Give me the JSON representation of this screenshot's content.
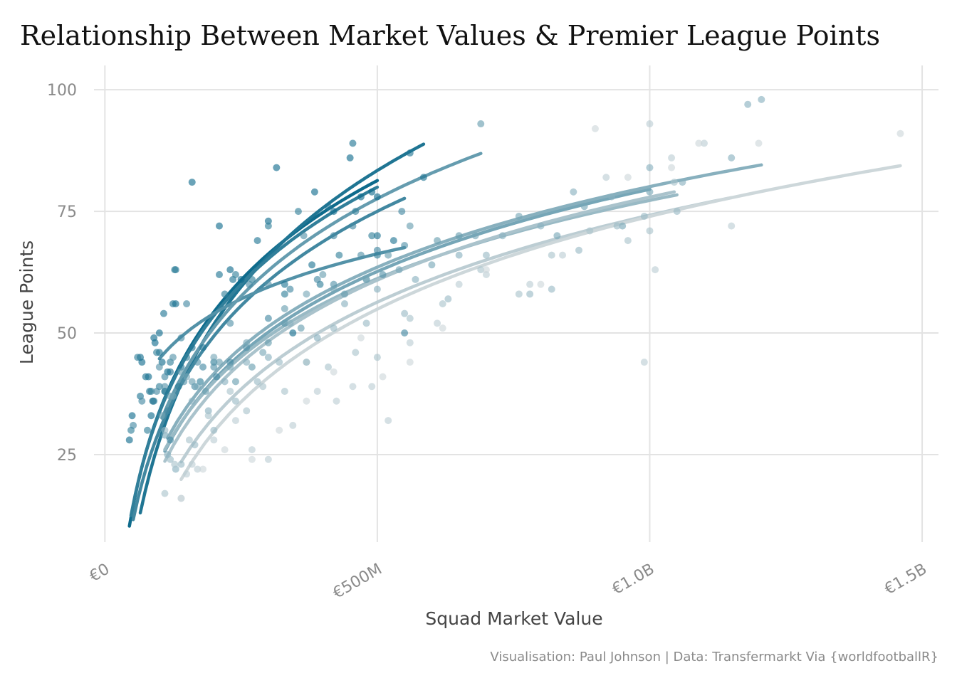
{
  "title": "Relationship Between Market Values & Premier League Points",
  "caption": "Visualisation: Paul Johnson  |  Data: Transfermarkt Via {worldfootballR}",
  "colors": {
    "dark": "#0e6b8c",
    "light": "#cdd7da",
    "grid": "#e3e3e3",
    "text": "#8a8a8a"
  },
  "chart_data": {
    "type": "scatter",
    "xlabel": "Squad Market Value",
    "ylabel": "League Points",
    "xlim": [
      -20,
      1530
    ],
    "ylim": [
      7,
      105
    ],
    "x_ticks": [
      0,
      500,
      1000,
      1500
    ],
    "x_tick_labels": [
      "€0",
      "€500M",
      "€1.0B",
      "€1.5B"
    ],
    "y_ticks": [
      25,
      50,
      75,
      100
    ],
    "y_tick_labels": [
      "25",
      "50",
      "75",
      "100"
    ],
    "x_units": "€M",
    "seasons": [
      {
        "x_range": [
          45,
          500
        ],
        "a": -102.0,
        "b": 29.5,
        "points": [
          [
            45,
            28
          ],
          [
            50,
            33
          ],
          [
            65,
            45
          ],
          [
            68,
            44
          ],
          [
            80,
            41
          ],
          [
            85,
            33
          ],
          [
            88,
            36
          ],
          [
            90,
            49
          ],
          [
            92,
            48
          ],
          [
            100,
            50
          ],
          [
            105,
            44
          ],
          [
            110,
            38
          ],
          [
            115,
            42
          ],
          [
            130,
            56
          ],
          [
            160,
            81
          ],
          [
            210,
            72
          ],
          [
            230,
            63
          ],
          [
            250,
            61
          ],
          [
            300,
            73
          ],
          [
            315,
            84
          ],
          [
            345,
            50
          ],
          [
            385,
            79
          ],
          [
            420,
            75
          ],
          [
            450,
            86
          ],
          [
            470,
            78
          ],
          [
            490,
            79
          ],
          [
            500,
            78
          ]
        ]
      },
      {
        "x_range": [
          65,
          585
        ],
        "a": -131.0,
        "b": 34.5,
        "points": [
          [
            65,
            37
          ],
          [
            75,
            41
          ],
          [
            82,
            38
          ],
          [
            90,
            36
          ],
          [
            100,
            46
          ],
          [
            108,
            54
          ],
          [
            120,
            42
          ],
          [
            125,
            56
          ],
          [
            130,
            63
          ],
          [
            140,
            43
          ],
          [
            160,
            47
          ],
          [
            180,
            47
          ],
          [
            210,
            62
          ],
          [
            235,
            61
          ],
          [
            280,
            69
          ],
          [
            330,
            60
          ],
          [
            380,
            64
          ],
          [
            410,
            76
          ],
          [
            455,
            89
          ],
          [
            500,
            70
          ],
          [
            530,
            69
          ],
          [
            560,
            87
          ],
          [
            585,
            82
          ]
        ]
      },
      {
        "x_range": [
          48,
          500
        ],
        "a": -99.0,
        "b": 28.8,
        "points": [
          [
            48,
            30
          ],
          [
            60,
            45
          ],
          [
            78,
            30
          ],
          [
            85,
            38
          ],
          [
            95,
            46
          ],
          [
            100,
            39
          ],
          [
            110,
            38
          ],
          [
            120,
            44
          ],
          [
            128,
            63
          ],
          [
            135,
            39
          ],
          [
            150,
            45
          ],
          [
            175,
            40
          ],
          [
            200,
            44
          ],
          [
            220,
            58
          ],
          [
            240,
            62
          ],
          [
            270,
            61
          ],
          [
            300,
            72
          ],
          [
            330,
            58
          ],
          [
            355,
            75
          ],
          [
            395,
            60
          ],
          [
            430,
            66
          ],
          [
            460,
            75
          ],
          [
            490,
            70
          ],
          [
            500,
            66
          ]
        ]
      },
      {
        "x_range": [
          52,
          550
        ],
        "a": -99.0,
        "b": 28.0,
        "points": [
          [
            52,
            31
          ],
          [
            68,
            36
          ],
          [
            88,
            36
          ],
          [
            95,
            38
          ],
          [
            110,
            41
          ],
          [
            115,
            34
          ],
          [
            120,
            28
          ],
          [
            140,
            49
          ],
          [
            150,
            56
          ],
          [
            165,
            39
          ],
          [
            180,
            43
          ],
          [
            205,
            41
          ],
          [
            230,
            44
          ],
          [
            265,
            60
          ],
          [
            300,
            53
          ],
          [
            340,
            59
          ],
          [
            390,
            61
          ],
          [
            420,
            70
          ],
          [
            455,
            72
          ],
          [
            500,
            67
          ],
          [
            545,
            75
          ],
          [
            550,
            50
          ]
        ]
      },
      {
        "x_range": [
          100,
          550
        ],
        "a": -17.0,
        "b": 13.4,
        "points": [
          [
            100,
            43
          ],
          [
            110,
            39
          ],
          [
            125,
            45
          ],
          [
            145,
            40
          ],
          [
            170,
            44
          ],
          [
            200,
            43
          ],
          [
            230,
            52
          ],
          [
            260,
            47
          ],
          [
            300,
            60
          ],
          [
            330,
            52
          ],
          [
            365,
            70
          ],
          [
            420,
            60
          ],
          [
            470,
            66
          ],
          [
            510,
            62
          ],
          [
            550,
            68
          ]
        ]
      },
      {
        "x_range": [
          105,
          690
        ],
        "a": -102.0,
        "b": 28.9,
        "points": [
          [
            105,
            33
          ],
          [
            120,
            37
          ],
          [
            140,
            42
          ],
          [
            160,
            40
          ],
          [
            185,
            38
          ],
          [
            210,
            44
          ],
          [
            240,
            40
          ],
          [
            270,
            43
          ],
          [
            300,
            48
          ],
          [
            330,
            55
          ],
          [
            360,
            51
          ],
          [
            400,
            62
          ],
          [
            440,
            58
          ],
          [
            480,
            61
          ],
          [
            520,
            66
          ],
          [
            560,
            72
          ],
          [
            610,
            69
          ],
          [
            650,
            70
          ],
          [
            690,
            93
          ]
        ]
      },
      {
        "x_range": [
          110,
          1000
        ],
        "a": -89.0,
        "b": 24.4,
        "points": [
          [
            110,
            29
          ],
          [
            125,
            37
          ],
          [
            150,
            41
          ],
          [
            170,
            39
          ],
          [
            200,
            45
          ],
          [
            230,
            43
          ],
          [
            260,
            48
          ],
          [
            290,
            46
          ],
          [
            330,
            52
          ],
          [
            370,
            58
          ],
          [
            420,
            59
          ],
          [
            480,
            61
          ],
          [
            540,
            63
          ],
          [
            600,
            64
          ],
          [
            680,
            70
          ],
          [
            760,
            74
          ],
          [
            830,
            70
          ],
          [
            880,
            76
          ],
          [
            950,
            72
          ],
          [
            1000,
            79
          ]
        ]
      },
      {
        "x_range": [
          115,
          1205
        ],
        "a": -85.0,
        "b": 23.9,
        "points": [
          [
            115,
            25
          ],
          [
            130,
            22
          ],
          [
            160,
            36
          ],
          [
            190,
            34
          ],
          [
            220,
            40
          ],
          [
            260,
            44
          ],
          [
            300,
            45
          ],
          [
            340,
            52
          ],
          [
            390,
            49
          ],
          [
            440,
            56
          ],
          [
            500,
            59
          ],
          [
            570,
            61
          ],
          [
            650,
            66
          ],
          [
            730,
            70
          ],
          [
            800,
            72
          ],
          [
            860,
            79
          ],
          [
            930,
            78
          ],
          [
            1000,
            84
          ],
          [
            1060,
            81
          ],
          [
            1150,
            86
          ],
          [
            1205,
            98
          ],
          [
            1180,
            97
          ]
        ]
      },
      {
        "x_range": [
          110,
          1050
        ],
        "a": -83.0,
        "b": 23.2,
        "points": [
          [
            110,
            30
          ],
          [
            120,
            24
          ],
          [
            140,
            23
          ],
          [
            165,
            27
          ],
          [
            200,
            30
          ],
          [
            240,
            36
          ],
          [
            280,
            40
          ],
          [
            320,
            44
          ],
          [
            370,
            44
          ],
          [
            420,
            51
          ],
          [
            480,
            52
          ],
          [
            550,
            54
          ],
          [
            630,
            57
          ],
          [
            700,
            66
          ],
          [
            780,
            58
          ],
          [
            820,
            59
          ],
          [
            870,
            67
          ],
          [
            940,
            72
          ],
          [
            990,
            74
          ],
          [
            1050,
            75
          ]
        ]
      },
      {
        "x_range": [
          110,
          1045
        ],
        "a": -92.0,
        "b": 24.6,
        "points": [
          [
            110,
            17
          ],
          [
            128,
            23
          ],
          [
            155,
            28
          ],
          [
            190,
            33
          ],
          [
            230,
            38
          ],
          [
            260,
            34
          ],
          [
            290,
            39
          ],
          [
            330,
            38
          ],
          [
            370,
            44
          ],
          [
            410,
            43
          ],
          [
            460,
            46
          ],
          [
            500,
            45
          ],
          [
            560,
            53
          ],
          [
            620,
            56
          ],
          [
            690,
            63
          ],
          [
            760,
            58
          ],
          [
            820,
            66
          ],
          [
            890,
            71
          ],
          [
            960,
            69
          ],
          [
            1000,
            71
          ],
          [
            1045,
            81
          ]
        ]
      },
      {
        "x_range": [
          140,
          1150
        ],
        "a": -104.0,
        "b": 25.8,
        "points": [
          [
            140,
            16
          ],
          [
            150,
            21
          ],
          [
            160,
            23
          ],
          [
            170,
            22
          ],
          [
            200,
            28
          ],
          [
            240,
            32
          ],
          [
            270,
            26
          ],
          [
            300,
            24
          ],
          [
            345,
            31
          ],
          [
            390,
            38
          ],
          [
            425,
            36
          ],
          [
            455,
            39
          ],
          [
            490,
            39
          ],
          [
            520,
            32
          ],
          [
            560,
            48
          ],
          [
            610,
            52
          ],
          [
            650,
            60
          ],
          [
            700,
            62
          ],
          [
            780,
            60
          ],
          [
            840,
            66
          ],
          [
            920,
            82
          ],
          [
            990,
            44
          ],
          [
            1000,
            93
          ],
          [
            1010,
            63
          ],
          [
            1040,
            86
          ],
          [
            1100,
            89
          ],
          [
            1150,
            72
          ]
        ]
      },
      {
        "x_range": [
          140,
          1460
        ],
        "a": -116.0,
        "b": 27.5,
        "points": [
          [
            140,
            16
          ],
          [
            180,
            22
          ],
          [
            220,
            26
          ],
          [
            270,
            24
          ],
          [
            320,
            30
          ],
          [
            370,
            36
          ],
          [
            420,
            42
          ],
          [
            470,
            49
          ],
          [
            510,
            41
          ],
          [
            560,
            44
          ],
          [
            620,
            51
          ],
          [
            700,
            63
          ],
          [
            800,
            60
          ],
          [
            900,
            92
          ],
          [
            960,
            82
          ],
          [
            1040,
            84
          ],
          [
            1090,
            89
          ],
          [
            1200,
            89
          ],
          [
            1460,
            91
          ]
        ]
      }
    ]
  }
}
